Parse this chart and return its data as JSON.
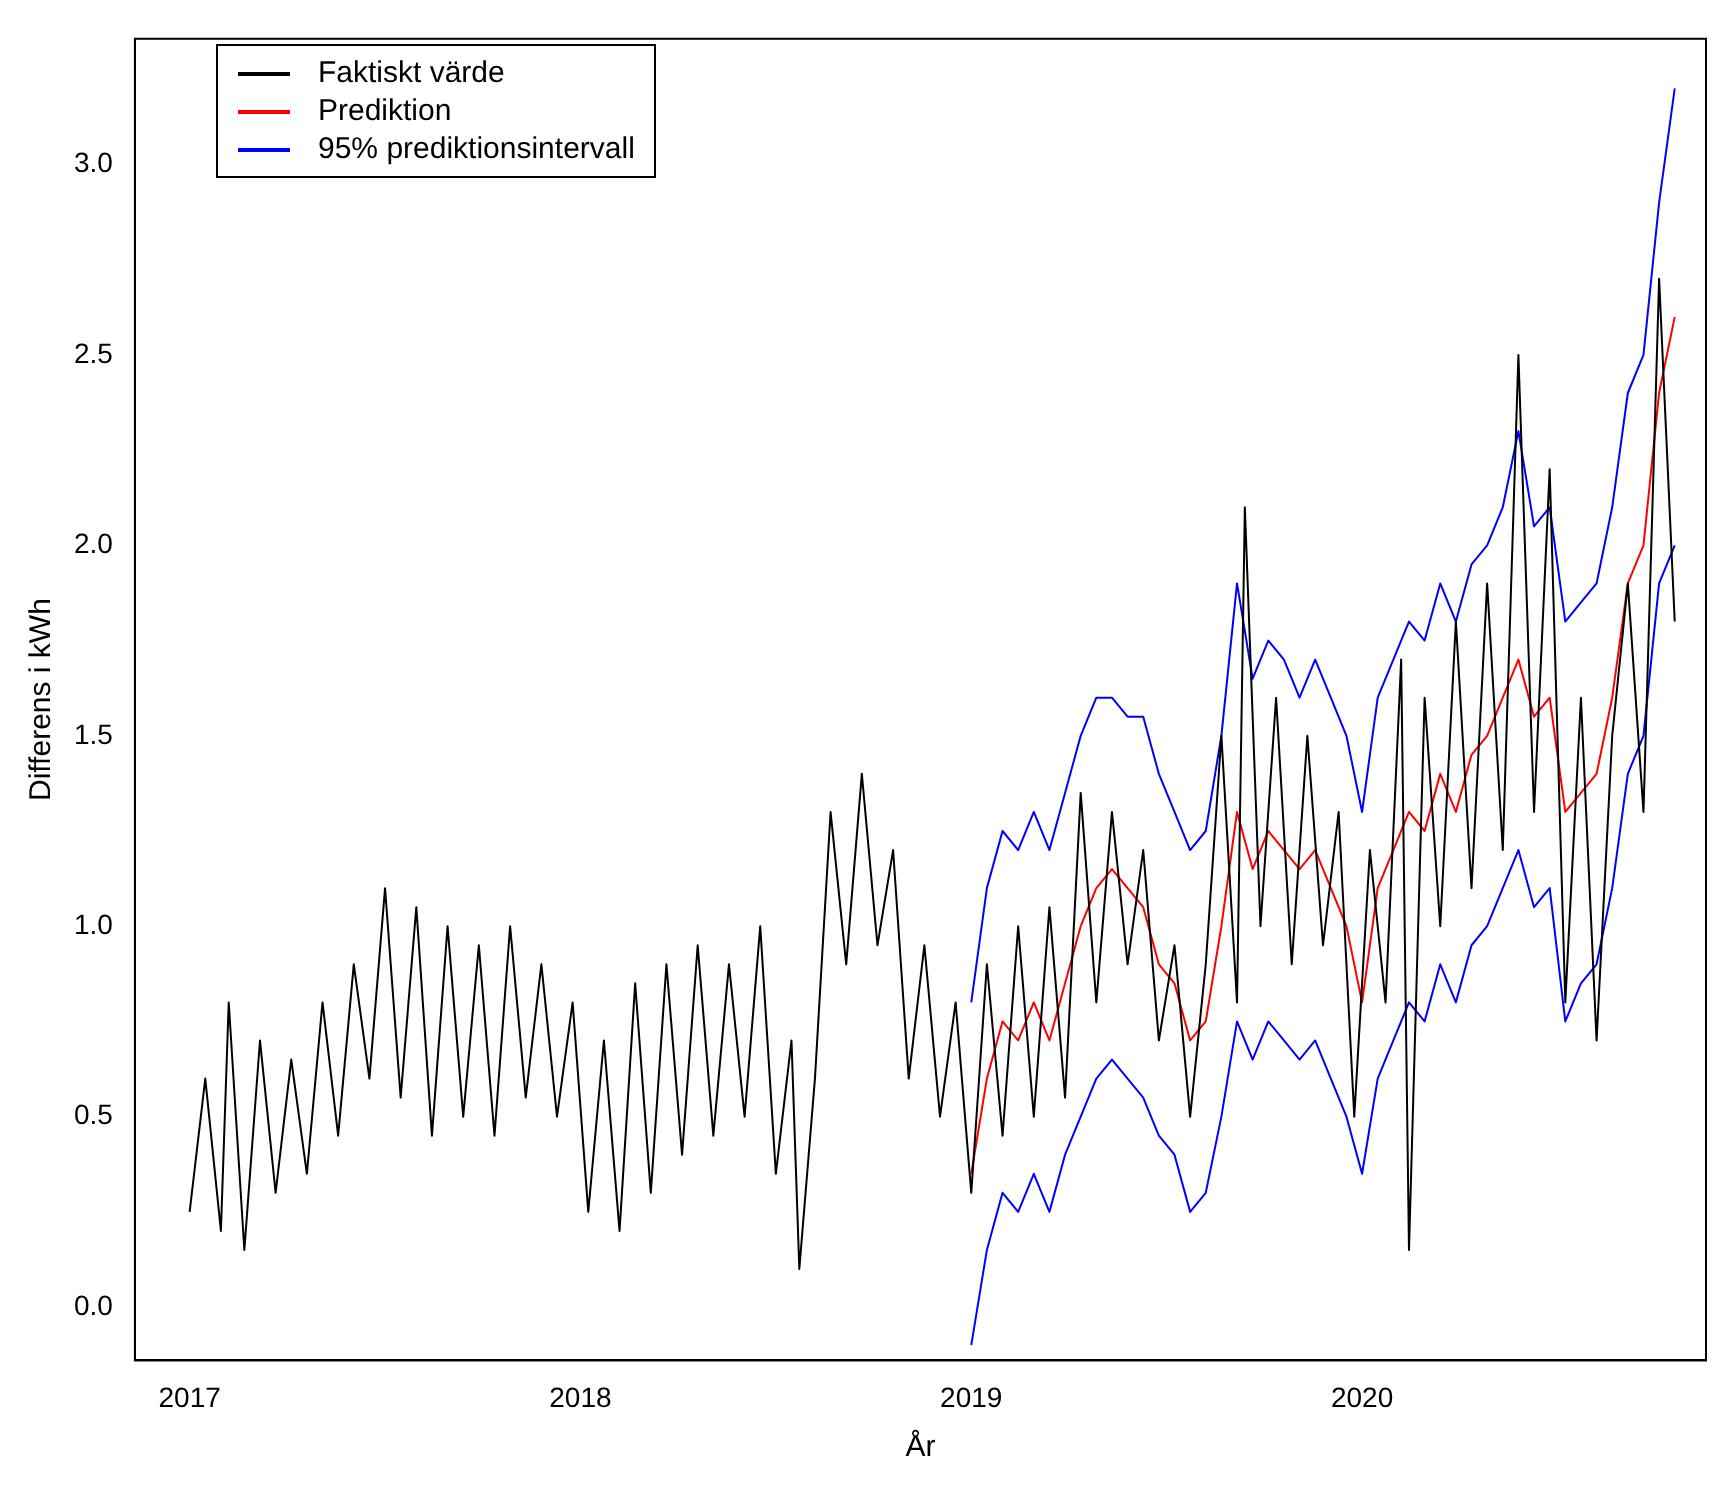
{
  "chart_data": {
    "type": "line",
    "xlabel": "År",
    "ylabel": "Differens i kWh",
    "xlim": [
      2016.86,
      2020.88
    ],
    "xticks": [
      2017,
      2018,
      2019,
      2020
    ],
    "ylim": [
      -0.14,
      3.33
    ],
    "yticks": [
      {
        "value": 0,
        "label": "0.0"
      },
      {
        "value": 0.5,
        "label": "0.5"
      },
      {
        "value": 1,
        "label": "1.0"
      },
      {
        "value": 1.5,
        "label": "1.5"
      },
      {
        "value": 2,
        "label": "2.0"
      },
      {
        "value": 2.5,
        "label": "2.5"
      },
      {
        "value": 3,
        "label": "3.0"
      }
    ],
    "grid": false,
    "legend": "top left",
    "marker": "none",
    "line_style": "solid",
    "series": [
      {
        "name": "Faktiskt värde",
        "color": "#000000",
        "x": [
          2017.0,
          2017.04,
          2017.08,
          2017.1,
          2017.14,
          2017.18,
          2017.22,
          2017.26,
          2017.3,
          2017.34,
          2017.38,
          2017.42,
          2017.46,
          2017.5,
          2017.54,
          2017.58,
          2017.62,
          2017.66,
          2017.7,
          2017.74,
          2017.78,
          2017.82,
          2017.86,
          2017.9,
          2017.94,
          2017.98,
          2018.02,
          2018.06,
          2018.1,
          2018.14,
          2018.18,
          2018.22,
          2018.26,
          2018.3,
          2018.34,
          2018.38,
          2018.42,
          2018.46,
          2018.5,
          2018.54,
          2018.56,
          2018.6,
          2018.64,
          2018.68,
          2018.72,
          2018.76,
          2018.8,
          2018.84,
          2018.88,
          2018.92,
          2018.96,
          2019.0,
          2019.04,
          2019.08,
          2019.12,
          2019.16,
          2019.2,
          2019.24,
          2019.28,
          2019.32,
          2019.36,
          2019.4,
          2019.44,
          2019.48,
          2019.52,
          2019.56,
          2019.6,
          2019.64,
          2019.68,
          2019.7,
          2019.74,
          2019.78,
          2019.82,
          2019.86,
          2019.9,
          2019.94,
          2019.98,
          2020.02,
          2020.06,
          2020.1,
          2020.12,
          2020.16,
          2020.2,
          2020.24,
          2020.28,
          2020.32,
          2020.36,
          2020.4,
          2020.44,
          2020.48,
          2020.52,
          2020.56,
          2020.6,
          2020.64,
          2020.68,
          2020.72,
          2020.76,
          2020.8
        ],
        "values": [
          0.25,
          0.6,
          0.2,
          0.8,
          0.15,
          0.7,
          0.3,
          0.65,
          0.35,
          0.8,
          0.45,
          0.9,
          0.6,
          1.1,
          0.55,
          1.05,
          0.45,
          1.0,
          0.5,
          0.95,
          0.45,
          1.0,
          0.55,
          0.9,
          0.5,
          0.8,
          0.25,
          0.7,
          0.2,
          0.85,
          0.3,
          0.9,
          0.4,
          0.95,
          0.45,
          0.9,
          0.5,
          1.0,
          0.35,
          0.7,
          0.1,
          0.6,
          1.3,
          0.9,
          1.4,
          0.95,
          1.2,
          0.6,
          0.95,
          0.5,
          0.8,
          0.3,
          0.9,
          0.45,
          1.0,
          0.5,
          1.05,
          0.55,
          1.35,
          0.8,
          1.3,
          0.9,
          1.2,
          0.7,
          0.95,
          0.5,
          0.9,
          1.5,
          0.8,
          2.1,
          1.0,
          1.6,
          0.9,
          1.5,
          0.95,
          1.3,
          0.5,
          1.2,
          0.8,
          1.7,
          0.15,
          1.6,
          1.0,
          1.8,
          1.1,
          1.9,
          1.2,
          2.5,
          1.3,
          2.2,
          0.8,
          1.6,
          0.7,
          1.5,
          1.9,
          1.3,
          2.7,
          1.8
        ]
      },
      {
        "name": "Prediktion",
        "color": "#ff0000",
        "x": [
          2019.0,
          2019.04,
          2019.08,
          2019.12,
          2019.16,
          2019.2,
          2019.24,
          2019.28,
          2019.32,
          2019.36,
          2019.4,
          2019.44,
          2019.48,
          2019.52,
          2019.56,
          2019.6,
          2019.64,
          2019.68,
          2019.72,
          2019.76,
          2019.8,
          2019.84,
          2019.88,
          2019.92,
          2019.96,
          2020.0,
          2020.04,
          2020.08,
          2020.12,
          2020.16,
          2020.2,
          2020.24,
          2020.28,
          2020.32,
          2020.36,
          2020.4,
          2020.44,
          2020.48,
          2020.52,
          2020.56,
          2020.6,
          2020.64,
          2020.68,
          2020.72,
          2020.76,
          2020.8
        ],
        "values": [
          0.35,
          0.6,
          0.75,
          0.7,
          0.8,
          0.7,
          0.85,
          1.0,
          1.1,
          1.15,
          1.1,
          1.05,
          0.9,
          0.85,
          0.7,
          0.75,
          1.0,
          1.3,
          1.15,
          1.25,
          1.2,
          1.15,
          1.2,
          1.1,
          1.0,
          0.8,
          1.1,
          1.2,
          1.3,
          1.25,
          1.4,
          1.3,
          1.45,
          1.5,
          1.6,
          1.7,
          1.55,
          1.6,
          1.3,
          1.35,
          1.4,
          1.6,
          1.9,
          2.0,
          2.4,
          2.6
        ]
      },
      {
        "name": "95% prediktionsintervall",
        "color": "#0000ff",
        "x": [
          2019.0,
          2019.04,
          2019.08,
          2019.12,
          2019.16,
          2019.2,
          2019.24,
          2019.28,
          2019.32,
          2019.36,
          2019.4,
          2019.44,
          2019.48,
          2019.52,
          2019.56,
          2019.6,
          2019.64,
          2019.68,
          2019.72,
          2019.76,
          2019.8,
          2019.84,
          2019.88,
          2019.92,
          2019.96,
          2020.0,
          2020.04,
          2020.08,
          2020.12,
          2020.16,
          2020.2,
          2020.24,
          2020.28,
          2020.32,
          2020.36,
          2020.4,
          2020.44,
          2020.48,
          2020.52,
          2020.56,
          2020.6,
          2020.64,
          2020.68,
          2020.72,
          2020.76,
          2020.8
        ],
        "values": [
          0.8,
          1.1,
          1.25,
          1.2,
          1.3,
          1.2,
          1.35,
          1.5,
          1.6,
          1.6,
          1.55,
          1.55,
          1.4,
          1.3,
          1.2,
          1.25,
          1.5,
          1.9,
          1.65,
          1.75,
          1.7,
          1.6,
          1.7,
          1.6,
          1.5,
          1.3,
          1.6,
          1.7,
          1.8,
          1.75,
          1.9,
          1.8,
          1.95,
          2.0,
          2.1,
          2.3,
          2.05,
          2.1,
          1.8,
          1.85,
          1.9,
          2.1,
          2.4,
          2.5,
          2.9,
          3.2
        ]
      },
      {
        "color": "#0000ff",
        "x": [
          2019.0,
          2019.04,
          2019.08,
          2019.12,
          2019.16,
          2019.2,
          2019.24,
          2019.28,
          2019.32,
          2019.36,
          2019.4,
          2019.44,
          2019.48,
          2019.52,
          2019.56,
          2019.6,
          2019.64,
          2019.68,
          2019.72,
          2019.76,
          2019.8,
          2019.84,
          2019.88,
          2019.92,
          2019.96,
          2020.0,
          2020.04,
          2020.08,
          2020.12,
          2020.16,
          2020.2,
          2020.24,
          2020.28,
          2020.32,
          2020.36,
          2020.4,
          2020.44,
          2020.48,
          2020.52,
          2020.56,
          2020.6,
          2020.64,
          2020.68,
          2020.72,
          2020.76,
          2020.8
        ],
        "values": [
          -0.1,
          0.15,
          0.3,
          0.25,
          0.35,
          0.25,
          0.4,
          0.5,
          0.6,
          0.65,
          0.6,
          0.55,
          0.45,
          0.4,
          0.25,
          0.3,
          0.5,
          0.75,
          0.65,
          0.75,
          0.7,
          0.65,
          0.7,
          0.6,
          0.5,
          0.35,
          0.6,
          0.7,
          0.8,
          0.75,
          0.9,
          0.8,
          0.95,
          1.0,
          1.1,
          1.2,
          1.05,
          1.1,
          0.75,
          0.85,
          0.9,
          1.1,
          1.4,
          1.5,
          1.9,
          2.0
        ]
      }
    ]
  }
}
